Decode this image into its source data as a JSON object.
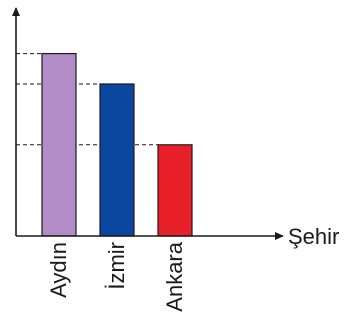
{
  "chart_data": {
    "type": "bar",
    "categories": [
      "Aydın",
      "İzmir",
      "Ankara"
    ],
    "values": [
      3,
      2.5,
      1.5
    ],
    "colors": [
      "#b28dc7",
      "#0b47a0",
      "#e8202a"
    ],
    "xlabel": "Şehir",
    "ylabel": "",
    "ylim": [
      0,
      3.75
    ],
    "grid": false,
    "guide_lines": "dashed horizontal lines from the y-axis to each bar top"
  }
}
